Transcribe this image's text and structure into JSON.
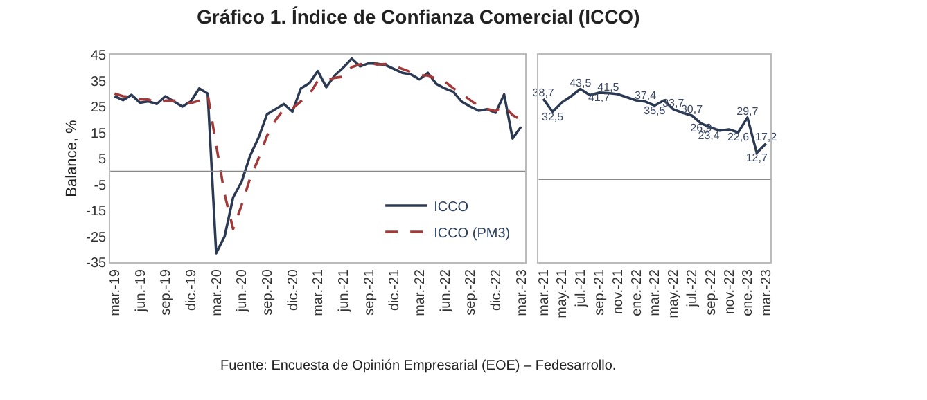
{
  "chart_data": [
    {
      "type": "line",
      "title": "Gráfico 1. Índice de Confianza Comercial (ICCO)",
      "ylabel": "Balance, %",
      "categories": [
        "mar.-19",
        null,
        null,
        "jun.-19",
        null,
        null,
        "sep.-19",
        null,
        null,
        "dic.-19",
        null,
        null,
        "mar.-20",
        null,
        null,
        "jun.-20",
        null,
        null,
        "sep.-20",
        null,
        null,
        "dic.-20",
        null,
        null,
        "mar.-21",
        null,
        null,
        "jun.-21",
        null,
        null,
        "sep.-21",
        null,
        null,
        "dic.-21",
        null,
        null,
        "mar.-22",
        null,
        null,
        "jun.-22",
        null,
        null,
        "sep.-22",
        null,
        null,
        "dic.-22",
        null,
        null,
        "mar.-23"
      ],
      "series": [
        {
          "name": "ICCO",
          "color": "#2b3a52",
          "line_style": "solid",
          "values": [
            29,
            27.5,
            29.5,
            26.5,
            27,
            26,
            29,
            27,
            25,
            27,
            32,
            30,
            -31.5,
            -25,
            -10,
            -4,
            6,
            13,
            22,
            24,
            26,
            23,
            32,
            34,
            38.7,
            32.5,
            37,
            40,
            43.5,
            40.5,
            41.7,
            41.5,
            41,
            39.5,
            38,
            37.4,
            35.5,
            38,
            33.7,
            32,
            30.7,
            26.9,
            25,
            23.4,
            24,
            22.6,
            29.7,
            12.7,
            17.2
          ]
        },
        {
          "name": "ICCO (PM3)",
          "color": "#a33a3a",
          "line_style": "dashed",
          "values": [
            30,
            29,
            28.7,
            27.8,
            27.7,
            26.5,
            27.3,
            27.3,
            27,
            26.3,
            27.3,
            29.7,
            10.2,
            -8.8,
            -22.2,
            -13,
            -2.7,
            5,
            13.7,
            19.7,
            24,
            24.3,
            27,
            29.7,
            34.9,
            35.1,
            36.1,
            36.5,
            40.2,
            41.3,
            41.9,
            41.2,
            41.4,
            40.7,
            39.5,
            38.3,
            37,
            37,
            35.7,
            34.6,
            32.1,
            29.9,
            27.5,
            25.1,
            24.1,
            23.3,
            25.4,
            21.7,
            19.9
          ]
        }
      ],
      "ylim": [
        -35,
        45
      ],
      "yticks": [
        -35,
        -25,
        -15,
        -5,
        5,
        15,
        25,
        35,
        45
      ],
      "grid": false,
      "legend": "bottom right",
      "ref_lines": [
        {
          "axis": "y",
          "value": 0,
          "color": "#888888"
        }
      ],
      "annotations": [
        "Fuente: Encuesta de Opinión Empresarial (EOE) – Fedesarrollo."
      ]
    },
    {
      "type": "line",
      "categories": [
        "mar.-21",
        null,
        "may.-21",
        null,
        "jul.-21",
        null,
        "sep.-21",
        null,
        "nov.-21",
        null,
        "ene.-22",
        null,
        "mar.-22",
        null,
        "may.-22",
        null,
        "jul.-22",
        null,
        "sep.-22",
        null,
        "nov.-22",
        null,
        "ene.-23",
        null,
        "mar.-23"
      ],
      "series": [
        {
          "color": "#2b3a52",
          "values": [
            38.7,
            32.5,
            37,
            40,
            43.5,
            40.5,
            41.7,
            41.5,
            41,
            39.5,
            38,
            37.4,
            35.5,
            38,
            33.7,
            32,
            30.7,
            26.9,
            25,
            23.4,
            24,
            22.6,
            29.7,
            12.7,
            17.2
          ],
          "value_labels": [
            "38,7",
            "32,5",
            null,
            null,
            "43,5",
            null,
            "41,7",
            "41,5",
            null,
            null,
            null,
            "37,4",
            "35,5",
            null,
            "33,7",
            null,
            "30,7",
            "26,9",
            null,
            "23,4",
            null,
            "22,6",
            "29,7",
            "12,7",
            "17,2"
          ]
        }
      ],
      "ylim": [
        -40,
        60
      ],
      "tick_labels": "x",
      "grid": false,
      "ref_lines": [
        {
          "axis": "y",
          "value": 0,
          "color": "#888888"
        }
      ]
    }
  ]
}
